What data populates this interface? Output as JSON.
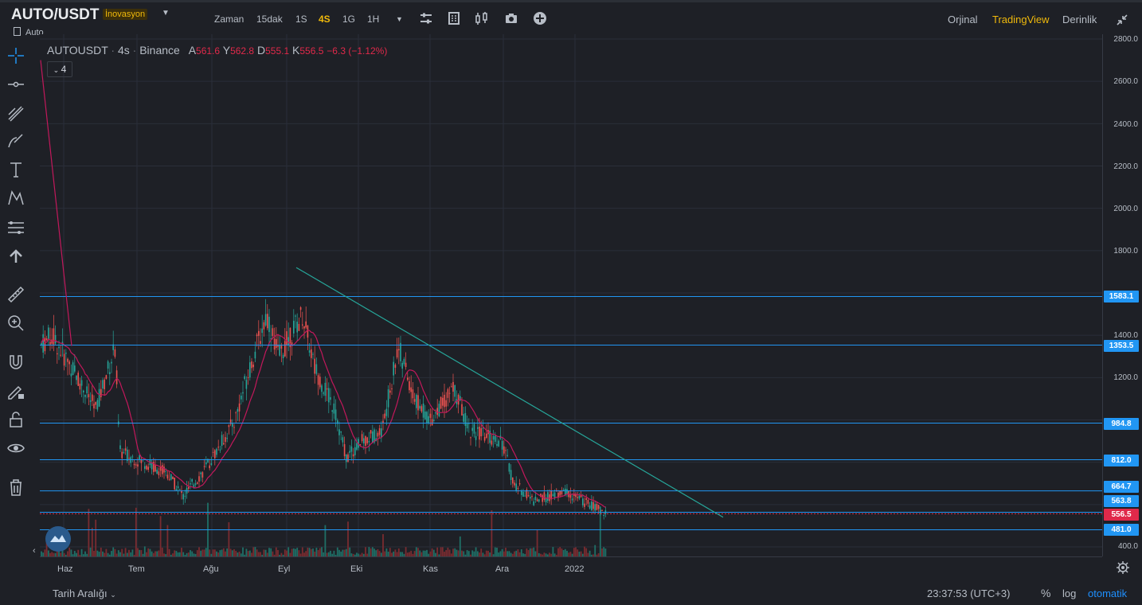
{
  "header": {
    "pair": "AUTO/USDT",
    "badge": "İnovasyon",
    "sub": "Auto",
    "timeframes": [
      "Zaman",
      "15dak",
      "1S",
      "4S",
      "1G",
      "1H"
    ],
    "active_timeframe": "4S",
    "tabs": [
      "Orjinal",
      "TradingView",
      "Derinlik"
    ],
    "active_tab": "TradingView"
  },
  "legend": {
    "symbol": "AUTOUSDT",
    "interval": "4s",
    "exchange": "Binance",
    "open_label": "A",
    "open": "561.6",
    "high_label": "Y",
    "high": "562.8",
    "low_label": "D",
    "low": "555.1",
    "close_label": "K",
    "close": "556.5",
    "change": "−6.3 (−1.12%)",
    "indicator_count": "4"
  },
  "price_axis": {
    "ticks": [
      "2800.0",
      "2600.0",
      "2400.0",
      "2200.0",
      "2000.0",
      "1800.0",
      "1400.0",
      "1200.0",
      "400.0"
    ],
    "level_labels": [
      "1583.1",
      "1353.5",
      "984.8",
      "812.0",
      "664.7",
      "563.8",
      "481.0"
    ],
    "current_price": "556.5"
  },
  "time_axis": {
    "ticks": [
      "Haz",
      "Tem",
      "Ağu",
      "Eyl",
      "Eki",
      "Kas",
      "Ara",
      "2022"
    ]
  },
  "footer": {
    "range": "Tarih Aralığı",
    "clock": "23:37:53 (UTC+3)",
    "percent": "%",
    "log": "log",
    "auto": "otomatik"
  },
  "colors": {
    "background": "#1e2026",
    "accent": "#f0b90b",
    "level_line": "#2196f3",
    "trend_line": "#26a69a",
    "ma_line": "#c2185b",
    "up": "#26a69a",
    "down": "#ef5350",
    "current_price_bg": "#e0294a"
  },
  "chart_data": {
    "type": "candlestick",
    "symbol": "AUTOUSDT",
    "interval": "4s",
    "ylim": [
      350,
      2850
    ],
    "horizontal_levels": [
      1583.1,
      1353.5,
      984.8,
      812.0,
      664.7,
      563.8,
      481.0
    ],
    "current_price": 556.5,
    "approx_path": [
      {
        "x": "Haz",
        "y": 1300
      },
      {
        "x": "Tem",
        "y": 820
      },
      {
        "x": "Ağu",
        "y": 650
      },
      {
        "x": "Eyl",
        "y": 1550
      },
      {
        "x": "Eki",
        "y": 830
      },
      {
        "x": "Kas",
        "y": 1100
      },
      {
        "x": "Ara",
        "y": 950
      },
      {
        "x": "2022",
        "y": 680
      }
    ]
  }
}
